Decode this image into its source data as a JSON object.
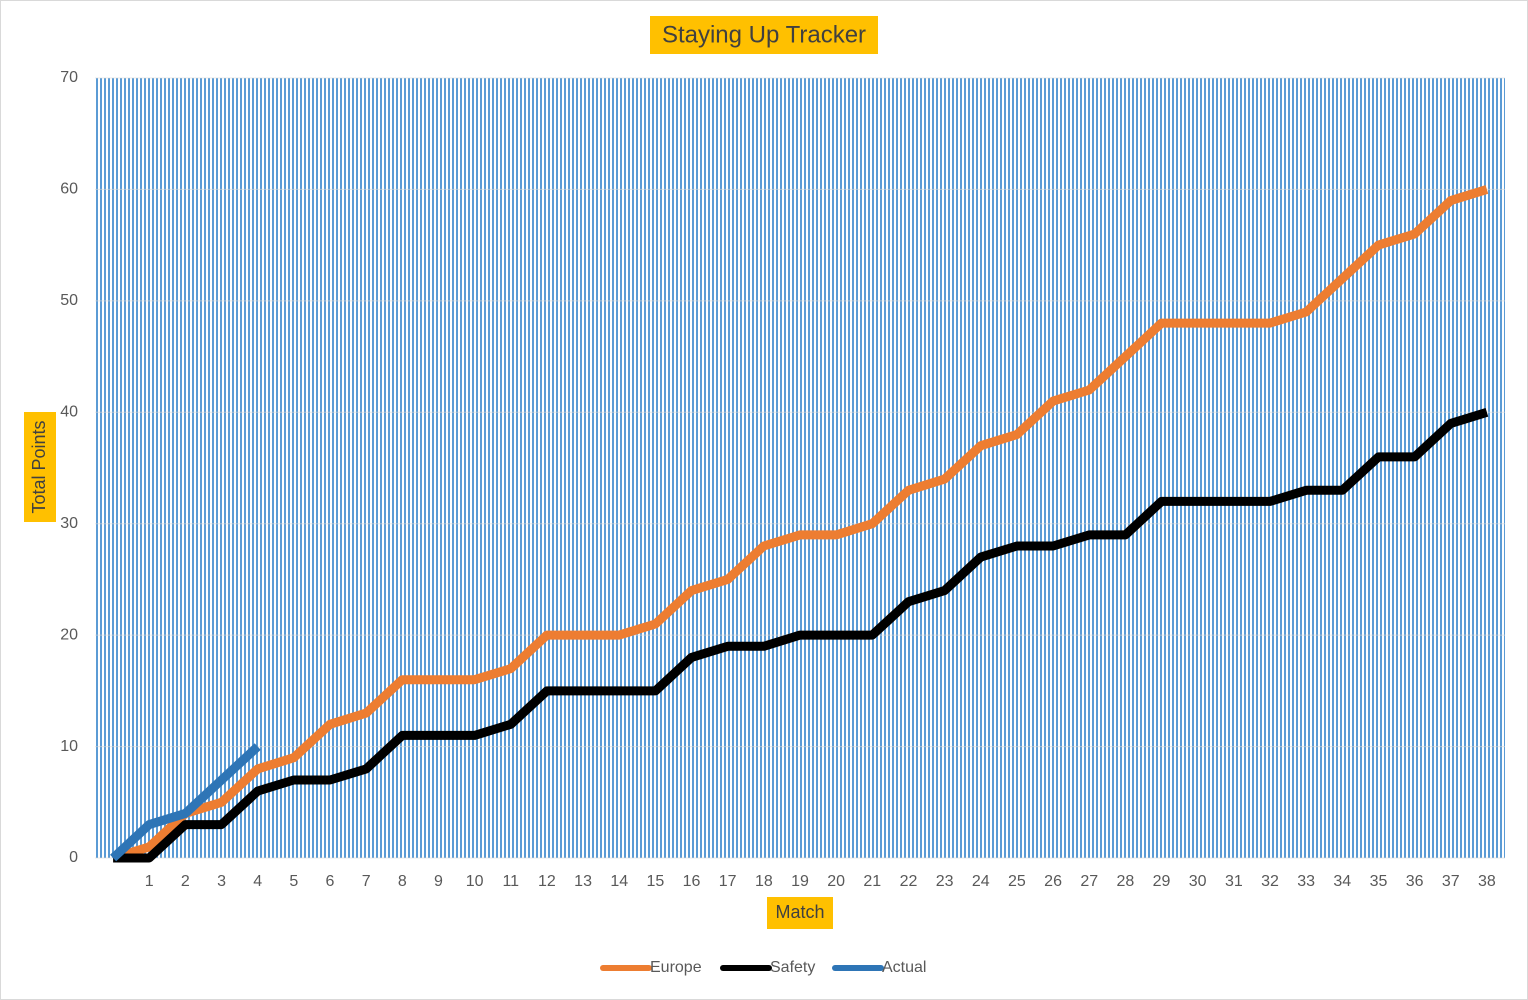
{
  "chart_data": {
    "type": "line",
    "title": "Staying Up Tracker",
    "x_label": "Match",
    "y_label": "Total Points",
    "categories": [
      null,
      1,
      2,
      3,
      4,
      5,
      6,
      7,
      8,
      9,
      10,
      11,
      12,
      13,
      14,
      15,
      16,
      17,
      18,
      19,
      20,
      21,
      22,
      23,
      24,
      25,
      26,
      27,
      28,
      29,
      30,
      31,
      32,
      33,
      34,
      35,
      36,
      37,
      38
    ],
    "series": [
      {
        "name": "Europe",
        "color": "#ed7d31",
        "values": [
          0,
          1,
          4,
          5,
          8,
          9,
          12,
          13,
          16,
          16,
          16,
          17,
          20,
          20,
          20,
          21,
          24,
          25,
          28,
          29,
          29,
          30,
          33,
          34,
          37,
          38,
          41,
          42,
          45,
          48,
          48,
          48,
          48,
          49,
          52,
          55,
          56,
          59,
          60
        ]
      },
      {
        "name": "Safety",
        "color": "#000000",
        "values": [
          0,
          0,
          3,
          3,
          6,
          7,
          7,
          8,
          11,
          11,
          11,
          12,
          15,
          15,
          15,
          15,
          18,
          19,
          19,
          20,
          20,
          20,
          23,
          24,
          27,
          28,
          28,
          29,
          29,
          32,
          32,
          32,
          32,
          33,
          33,
          36,
          36,
          39,
          40
        ]
      },
      {
        "name": "Actual",
        "color": "#2e75b6",
        "values": [
          0,
          3,
          4,
          7,
          10,
          null,
          null,
          null,
          null,
          null,
          null,
          null,
          null,
          null,
          null,
          null,
          null,
          null,
          null,
          null,
          null,
          null,
          null,
          null,
          null,
          null,
          null,
          null,
          null,
          null,
          null,
          null,
          null,
          null,
          null,
          null,
          null,
          null,
          null
        ]
      }
    ],
    "ylim": [
      0,
      70
    ],
    "yticks": [
      0,
      10,
      20,
      30,
      40,
      50,
      60,
      70
    ],
    "legend": "bottom"
  }
}
